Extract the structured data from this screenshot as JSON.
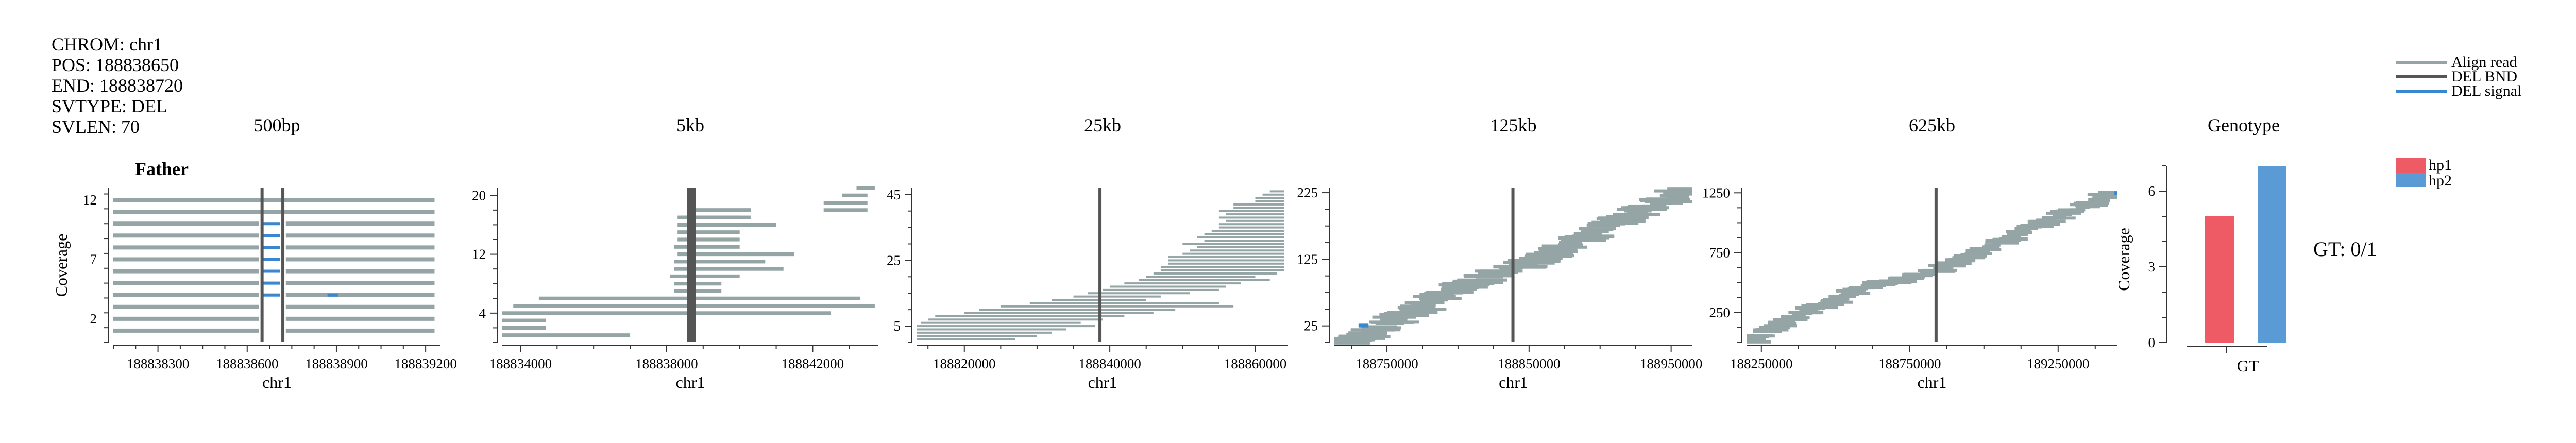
{
  "info": {
    "lines": [
      "CHROM: chr1",
      "POS: 188838650",
      "END: 188838720",
      "SVTYPE: DEL",
      "SVLEN: 70"
    ]
  },
  "sample": "Father",
  "legend": {
    "items": [
      {
        "label": "Align read",
        "color": "#95a5a6"
      },
      {
        "label": "DEL BND",
        "color": "#555555"
      },
      {
        "label": "DEL signal",
        "color": "#3a86d1"
      }
    ]
  },
  "colors": {
    "read": "#95a5a6",
    "bnd": "#555555",
    "signal": "#3a86d1",
    "hp1": "#ef5b64",
    "hp2": "#5b9bd5"
  },
  "chart_data": [
    {
      "type": "scatter",
      "title": "500bp",
      "xlabel": "chr1",
      "ylabel": "Coverage",
      "xlim": [
        188838150,
        188839250
      ],
      "ylim": [
        0,
        13
      ],
      "xticks": [
        188838300,
        188838600,
        188838900,
        188839200
      ],
      "yticks": [
        2,
        7,
        12
      ],
      "bnd": [
        188838650,
        188838720
      ],
      "reads": [
        [
          188838150,
          188838640,
          1
        ],
        [
          188838730,
          188839230,
          1
        ],
        [
          188838150,
          188838640,
          2
        ],
        [
          188838730,
          188839230,
          2
        ],
        [
          188838150,
          188838640,
          3
        ],
        [
          188838730,
          188839230,
          3
        ],
        [
          188838150,
          188838640,
          4
        ],
        [
          188838730,
          188839230,
          4
        ],
        [
          188838150,
          188838640,
          5
        ],
        [
          188838730,
          188839230,
          5
        ],
        [
          188838150,
          188838640,
          6
        ],
        [
          188838730,
          188839230,
          6
        ],
        [
          188838150,
          188838640,
          7
        ],
        [
          188838730,
          188839230,
          7
        ],
        [
          188838150,
          188838640,
          8
        ],
        [
          188838730,
          188839230,
          8
        ],
        [
          188838150,
          188838640,
          9
        ],
        [
          188838730,
          188839230,
          9
        ],
        [
          188838150,
          188838640,
          10
        ],
        [
          188838730,
          188839230,
          10
        ],
        [
          188838150,
          188839230,
          11
        ],
        [
          188838150,
          188839230,
          12
        ]
      ],
      "signals": [
        [
          188838650,
          188838710,
          4
        ],
        [
          188838650,
          188838710,
          5
        ],
        [
          188838650,
          188838710,
          6
        ],
        [
          188838650,
          188838710,
          7
        ],
        [
          188838650,
          188838710,
          8
        ],
        [
          188838650,
          188838710,
          9
        ],
        [
          188838650,
          188838710,
          10
        ],
        [
          188838870,
          188838905,
          4
        ]
      ]
    },
    {
      "type": "scatter",
      "title": "5kb",
      "xlabel": "chr1",
      "ylabel": "",
      "xlim": [
        188833500,
        188843800
      ],
      "ylim": [
        0,
        21
      ],
      "xticks": [
        188834000,
        188838000,
        188842000
      ],
      "yticks": [
        4,
        12,
        20
      ],
      "bnd": [
        188838650,
        188838720
      ],
      "reads": [
        [
          188833500,
          188837000,
          1
        ],
        [
          188833500,
          188834700,
          2
        ],
        [
          188833500,
          188834700,
          3
        ],
        [
          188833500,
          188842500,
          4
        ],
        [
          188833800,
          188843700,
          5
        ],
        [
          188834500,
          188843300,
          6
        ],
        [
          188838200,
          188839500,
          7
        ],
        [
          188838200,
          188839500,
          8
        ],
        [
          188838100,
          188840000,
          9
        ],
        [
          188838200,
          188841200,
          10
        ],
        [
          188838200,
          188840700,
          11
        ],
        [
          188838300,
          188841500,
          12
        ],
        [
          188838200,
          188840000,
          13
        ],
        [
          188838300,
          188840000,
          14
        ],
        [
          188838300,
          188840000,
          15
        ],
        [
          188838300,
          188841000,
          16
        ],
        [
          188838300,
          188840300,
          17
        ],
        [
          188838400,
          188840000,
          17
        ],
        [
          188838600,
          188840300,
          18
        ],
        [
          188842300,
          188843500,
          18
        ],
        [
          188838600,
          188840300,
          18
        ],
        [
          188842300,
          188843500,
          19
        ],
        [
          188842800,
          188843500,
          20
        ],
        [
          188843200,
          188843700,
          21
        ]
      ],
      "signals": [
        [
          188838600,
          188838800,
          12
        ],
        [
          188838600,
          188838800,
          13
        ]
      ]
    },
    {
      "type": "scatter",
      "title": "25kb",
      "xlabel": "chr1",
      "ylabel": "",
      "xlim": [
        188813500,
        188864500
      ],
      "ylim": [
        0,
        47
      ],
      "xticks": [
        188820000,
        188840000,
        188860000
      ],
      "yticks": [
        5,
        25,
        45
      ],
      "bnd": [
        188838650
      ],
      "reads": [
        [
          188813500,
          188827000,
          1
        ],
        [
          188813500,
          188830000,
          2
        ],
        [
          188813500,
          188832000,
          3
        ],
        [
          188813500,
          188834000,
          4
        ],
        [
          188813500,
          188838000,
          5
        ],
        [
          188814000,
          188836000,
          6
        ],
        [
          188815000,
          188839000,
          7
        ],
        [
          188816000,
          188842000,
          8
        ],
        [
          188820000,
          188846000,
          9
        ],
        [
          188822000,
          188849000,
          10
        ],
        [
          188825000,
          188857000,
          11
        ],
        [
          188829000,
          188855000,
          12
        ],
        [
          188832000,
          188845000,
          13
        ],
        [
          188835000,
          188847000,
          14
        ],
        [
          188837000,
          188851000,
          15
        ],
        [
          188839000,
          188855000,
          16
        ],
        [
          188840000,
          188856000,
          17
        ],
        [
          188842000,
          188858000,
          18
        ],
        [
          188844000,
          188862000,
          19
        ],
        [
          188845000,
          188860000,
          20
        ],
        [
          188846000,
          188863000,
          21
        ],
        [
          188847000,
          188864000,
          22
        ],
        [
          188847000,
          188864000,
          23
        ],
        [
          188848000,
          188864000,
          24
        ],
        [
          188848000,
          188864000,
          25
        ],
        [
          188848000,
          188864000,
          26
        ],
        [
          188850000,
          188864000,
          27
        ],
        [
          188851000,
          188864000,
          28
        ],
        [
          188852000,
          188864000,
          29
        ],
        [
          188850000,
          188864000,
          30
        ],
        [
          188853000,
          188864000,
          31
        ],
        [
          188852000,
          188864000,
          32
        ],
        [
          188853000,
          188864000,
          33
        ],
        [
          188854000,
          188864000,
          34
        ],
        [
          188855000,
          188864000,
          35
        ],
        [
          188855000,
          188864000,
          36
        ],
        [
          188856000,
          188864000,
          37
        ],
        [
          188855000,
          188864000,
          38
        ],
        [
          188856000,
          188864000,
          39
        ],
        [
          188855000,
          188864000,
          40
        ],
        [
          188857000,
          188864000,
          41
        ],
        [
          188857000,
          188864000,
          42
        ],
        [
          188860000,
          188864000,
          43
        ],
        [
          188860000,
          188864000,
          44
        ],
        [
          188861000,
          188864000,
          45
        ],
        [
          188862000,
          188864000,
          46
        ]
      ],
      "signals": []
    },
    {
      "type": "scatter",
      "title": "125kb",
      "xlabel": "chr1",
      "ylabel": "",
      "xlim": [
        188713000,
        188965000
      ],
      "ylim": [
        0,
        232
      ],
      "xticks": [
        188750000,
        188850000,
        188950000
      ],
      "yticks": [
        25,
        125,
        225
      ],
      "bnd": [
        188838650
      ],
      "reads": [],
      "band": {
        "points": [
          [
            188713000,
            2
          ],
          [
            188735000,
            10
          ],
          [
            188760000,
            38
          ],
          [
            188790000,
            72
          ],
          [
            188820000,
            100
          ],
          [
            188840000,
            113
          ],
          [
            188860000,
            128
          ],
          [
            188880000,
            150
          ],
          [
            188900000,
            170
          ],
          [
            188930000,
            200
          ],
          [
            188965000,
            232
          ]
        ],
        "rows_per_unit": 0.5,
        "read_len": 24000,
        "jitter": 9000
      },
      "signals": [
        [
          188730000,
          188737000,
          25
        ],
        [
          188730000,
          188737000,
          26
        ]
      ]
    },
    {
      "type": "scatter",
      "title": "625kb",
      "xlabel": "chr1",
      "ylabel": "",
      "xlim": [
        188200000,
        189450000
      ],
      "ylim": [
        0,
        1290
      ],
      "xticks": [
        188250000,
        188750000,
        189250000
      ],
      "yticks": [
        250,
        750,
        1250
      ],
      "bnd": [
        188838650
      ],
      "reads": [],
      "band": {
        "points": [
          [
            188200000,
            20
          ],
          [
            188400000,
            250
          ],
          [
            188600000,
            460
          ],
          [
            188838650,
            600
          ],
          [
            189000000,
            780
          ],
          [
            189200000,
            1000
          ],
          [
            189450000,
            1260
          ]
        ],
        "rows_per_unit": 0.09,
        "read_len": 80000,
        "jitter": 25000
      },
      "signals": [
        [
          189440000,
          189450000,
          1245
        ],
        [
          189440000,
          189450000,
          1250
        ]
      ]
    },
    {
      "type": "bar",
      "title": "Genotype",
      "xlabel": "GT",
      "ylabel": "Coverage",
      "ylim": [
        0,
        7
      ],
      "yticks": [
        0,
        3,
        6
      ],
      "series": [
        {
          "name": "hp1",
          "values": [
            5
          ]
        },
        {
          "name": "hp2",
          "values": [
            7
          ]
        }
      ],
      "annotation": "GT: 0/1"
    }
  ]
}
